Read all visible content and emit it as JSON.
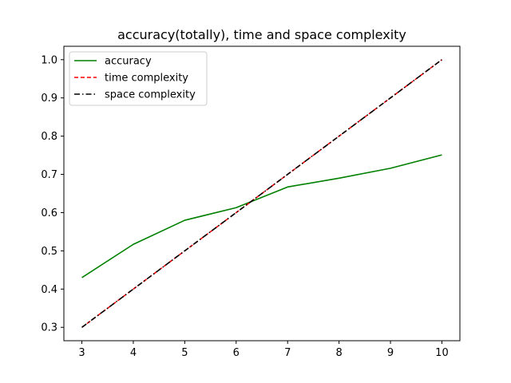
{
  "chart_data": {
    "type": "line",
    "title": "accuracy(totally), time and space complexity",
    "xlabel": "",
    "ylabel": "",
    "x": [
      3,
      4,
      5,
      6,
      7,
      8,
      9,
      10
    ],
    "xlim": [
      2.65,
      10.35
    ],
    "ylim": [
      0.265,
      1.035
    ],
    "xticks": [
      3,
      4,
      5,
      6,
      7,
      8,
      9,
      10
    ],
    "yticks": [
      0.3,
      0.4,
      0.5,
      0.6,
      0.7,
      0.8,
      0.9,
      1.0
    ],
    "grid": false,
    "legend_position": "top-left",
    "series": [
      {
        "name": "accuracy",
        "color": "#008000",
        "dash": "solid",
        "values": [
          0.43,
          0.517,
          0.58,
          0.613,
          0.667,
          0.69,
          0.716,
          0.751
        ]
      },
      {
        "name": "time complexity",
        "color": "#ff0000",
        "dash": "dashed",
        "values": [
          0.3,
          0.4,
          0.5,
          0.6,
          0.7,
          0.8,
          0.9,
          1.0
        ]
      },
      {
        "name": "space complexity",
        "color": "#000000",
        "dash": "dashdot",
        "values": [
          0.3,
          0.4,
          0.5,
          0.6,
          0.7,
          0.8,
          0.9,
          1.0
        ]
      }
    ]
  }
}
